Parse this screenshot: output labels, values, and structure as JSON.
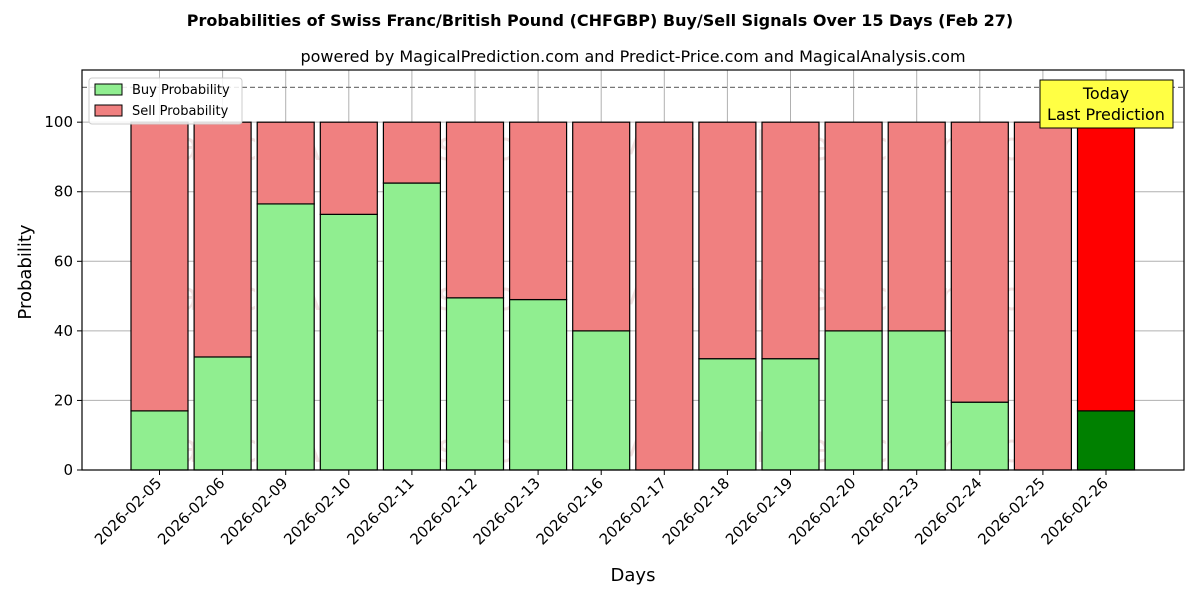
{
  "chart_data": {
    "type": "bar",
    "stacked": true,
    "title": "Probabilities of Swiss Franc/British Pound (CHFGBP) Buy/Sell Signals Over 15 Days (Feb 27)",
    "subtitle": "powered by MagicalPrediction.com and Predict-Price.com and MagicalAnalysis.com",
    "xlabel": "Days",
    "ylabel": "Probability",
    "ylim": [
      0,
      115
    ],
    "yticks": [
      0,
      20,
      40,
      60,
      80,
      100
    ],
    "grid": true,
    "legend_position": "top-left",
    "reference_line": 110,
    "categories": [
      "2026-02-05",
      "2026-02-06",
      "2026-02-09",
      "2026-02-10",
      "2026-02-11",
      "2026-02-12",
      "2026-02-13",
      "2026-02-16",
      "2026-02-17",
      "2026-02-18",
      "2026-02-19",
      "2026-02-20",
      "2026-02-23",
      "2026-02-24",
      "2026-02-25",
      "2026-02-26"
    ],
    "series": [
      {
        "name": "Buy Probability",
        "color": "#90ee90",
        "values": [
          17,
          32.5,
          76.5,
          73.5,
          82.5,
          49.5,
          49,
          40,
          0,
          32,
          32,
          40,
          40,
          19.5,
          0,
          17
        ]
      },
      {
        "name": "Sell Probability",
        "color": "#f08080",
        "values": [
          83,
          67.5,
          23.5,
          26.5,
          17.5,
          50.5,
          51,
          60,
          100,
          68,
          68,
          60,
          60,
          80.5,
          100,
          83
        ]
      }
    ],
    "highlight": {
      "index": 15,
      "buy_color": "#008000",
      "sell_color": "#ff0000"
    },
    "annotation": {
      "lines": [
        "Today",
        "Last Prediction"
      ],
      "background": "#ffff44"
    },
    "watermarks": [
      "MagicalAnalysis.com",
      "MagicalPrediction.com"
    ]
  }
}
